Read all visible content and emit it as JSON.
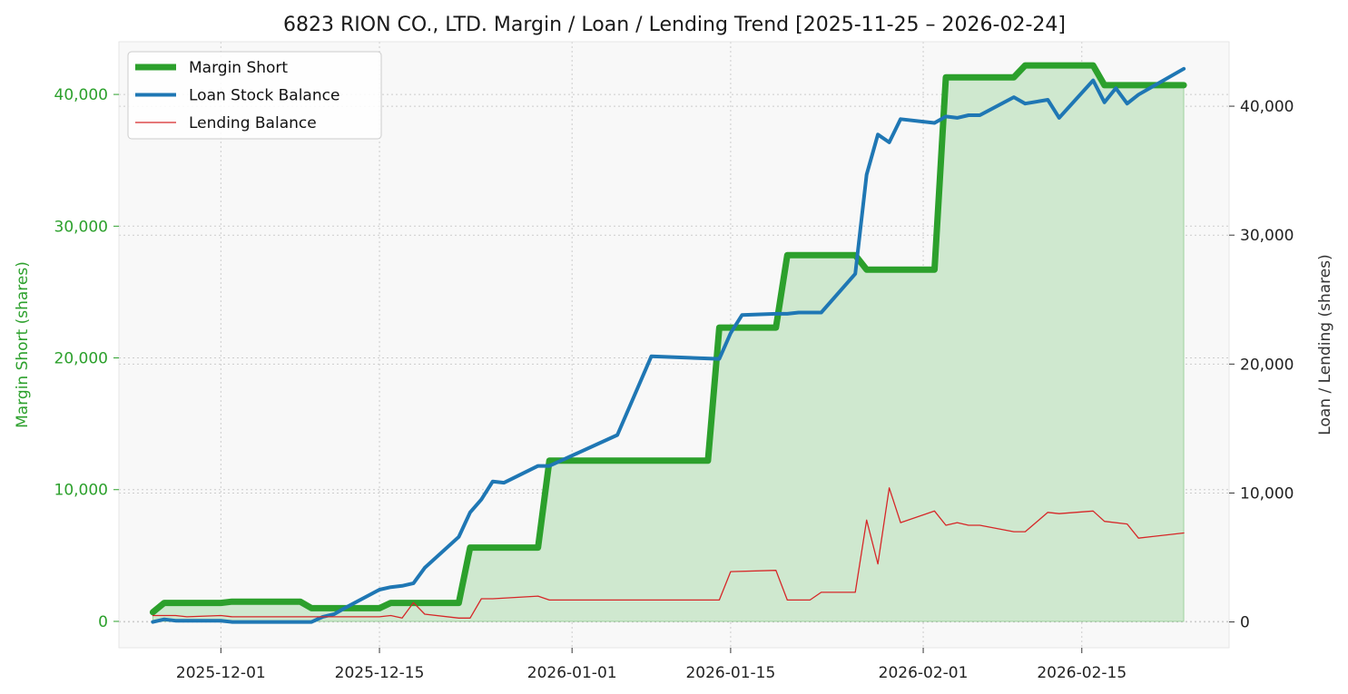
{
  "chart_data": {
    "type": "line",
    "title": "6823 RION CO., LTD. Margin / Loan / Lending Trend [2025-11-25 – 2026-02-24]",
    "ylabel_left": "Margin Short (shares)",
    "ylabel_right": "Loan / Lending (shares)",
    "xlim": [
      "2025-11-22",
      "2026-02-28"
    ],
    "ylim_left": [
      -2000,
      44000
    ],
    "ylim_right": [
      -2000,
      45000
    ],
    "x_ticks": [
      "2025-12-01",
      "2025-12-15",
      "2026-01-01",
      "2026-01-15",
      "2026-02-01",
      "2026-02-15"
    ],
    "y_ticks_left": [
      0,
      10000,
      20000,
      30000,
      40000
    ],
    "y_ticks_left_labels": [
      "0",
      "10,000",
      "20,000",
      "30,000",
      "40,000"
    ],
    "y_ticks_right": [
      0,
      10000,
      20000,
      30000,
      40000
    ],
    "y_ticks_right_labels": [
      "0",
      "10,000",
      "20,000",
      "30,000",
      "40,000"
    ],
    "grid": true,
    "legend_position": "upper-left",
    "colors": {
      "margin": "#2ca02c",
      "margin_fill": "#cfe8cf",
      "loan": "#1f77b4",
      "lending": "#d62728",
      "left_axis": "#2ca02c",
      "right_axis": "#333333",
      "plot_bg": "#f8f8f8",
      "grid": "#cccccc"
    },
    "series": [
      {
        "name": "Margin Short",
        "axis": "left",
        "style": "step",
        "points": [
          [
            "2025-11-25",
            700
          ],
          [
            "2025-11-26",
            1400
          ],
          [
            "2025-12-01",
            1400
          ],
          [
            "2025-12-02",
            1500
          ],
          [
            "2025-12-08",
            1500
          ],
          [
            "2025-12-09",
            1000
          ],
          [
            "2025-12-15",
            1000
          ],
          [
            "2025-12-16",
            1400
          ],
          [
            "2025-12-22",
            1400
          ],
          [
            "2025-12-23",
            5600
          ],
          [
            "2025-12-29",
            5600
          ],
          [
            "2025-12-30",
            12200
          ],
          [
            "2026-01-13",
            12200
          ],
          [
            "2026-01-14",
            22300
          ],
          [
            "2026-01-19",
            22300
          ],
          [
            "2026-01-20",
            27800
          ],
          [
            "2026-01-26",
            27800
          ],
          [
            "2026-01-27",
            26700
          ],
          [
            "2026-02-02",
            26700
          ],
          [
            "2026-02-03",
            41300
          ],
          [
            "2026-02-09",
            41300
          ],
          [
            "2026-02-10",
            42200
          ],
          [
            "2026-02-16",
            42200
          ],
          [
            "2026-02-17",
            40700
          ],
          [
            "2026-02-24",
            40700
          ]
        ]
      },
      {
        "name": "Loan Stock Balance",
        "axis": "right",
        "points": [
          [
            "2025-11-25",
            0
          ],
          [
            "2025-11-26",
            200
          ],
          [
            "2025-11-27",
            100
          ],
          [
            "2025-12-01",
            100
          ],
          [
            "2025-12-02",
            0
          ],
          [
            "2025-12-09",
            0
          ],
          [
            "2025-12-10",
            400
          ],
          [
            "2025-12-11",
            600
          ],
          [
            "2025-12-12",
            1100
          ],
          [
            "2025-12-15",
            2500
          ],
          [
            "2025-12-16",
            2700
          ],
          [
            "2025-12-17",
            2800
          ],
          [
            "2025-12-18",
            3000
          ],
          [
            "2025-12-19",
            4200
          ],
          [
            "2025-12-22",
            6600
          ],
          [
            "2025-12-23",
            8500
          ],
          [
            "2025-12-24",
            9500
          ],
          [
            "2025-12-25",
            10900
          ],
          [
            "2025-12-26",
            10800
          ],
          [
            "2025-12-29",
            12100
          ],
          [
            "2025-12-30",
            12100
          ],
          [
            "2026-01-05",
            14500
          ],
          [
            "2026-01-08",
            20600
          ],
          [
            "2026-01-14",
            20400
          ],
          [
            "2026-01-15",
            22400
          ],
          [
            "2026-01-16",
            23800
          ],
          [
            "2026-01-19",
            23900
          ],
          [
            "2026-01-20",
            23900
          ],
          [
            "2026-01-21",
            24000
          ],
          [
            "2026-01-23",
            24000
          ],
          [
            "2026-01-26",
            27000
          ],
          [
            "2026-01-27",
            34700
          ],
          [
            "2026-01-28",
            37800
          ],
          [
            "2026-01-29",
            37200
          ],
          [
            "2026-01-30",
            39000
          ],
          [
            "2026-02-02",
            38700
          ],
          [
            "2026-02-03",
            39200
          ],
          [
            "2026-02-04",
            39100
          ],
          [
            "2026-02-05",
            39300
          ],
          [
            "2026-02-06",
            39300
          ],
          [
            "2026-02-09",
            40700
          ],
          [
            "2026-02-10",
            40200
          ],
          [
            "2026-02-12",
            40500
          ],
          [
            "2026-02-13",
            39100
          ],
          [
            "2026-02-16",
            42000
          ],
          [
            "2026-02-17",
            40300
          ],
          [
            "2026-02-18",
            41400
          ],
          [
            "2026-02-19",
            40200
          ],
          [
            "2026-02-20",
            40900
          ],
          [
            "2026-02-24",
            42900
          ]
        ]
      },
      {
        "name": "Lending Balance",
        "axis": "right",
        "points": [
          [
            "2025-11-25",
            500
          ],
          [
            "2025-11-27",
            500
          ],
          [
            "2025-11-28",
            400
          ],
          [
            "2025-12-01",
            500
          ],
          [
            "2025-12-02",
            400
          ],
          [
            "2025-12-15",
            400
          ],
          [
            "2025-12-16",
            500
          ],
          [
            "2025-12-17",
            300
          ],
          [
            "2025-12-18",
            1500
          ],
          [
            "2025-12-19",
            600
          ],
          [
            "2025-12-22",
            300
          ],
          [
            "2025-12-23",
            300
          ],
          [
            "2025-12-24",
            1800
          ],
          [
            "2025-12-25",
            1800
          ],
          [
            "2025-12-29",
            2000
          ],
          [
            "2025-12-30",
            1700
          ],
          [
            "2026-01-14",
            1700
          ],
          [
            "2026-01-15",
            3900
          ],
          [
            "2026-01-19",
            4000
          ],
          [
            "2026-01-20",
            1700
          ],
          [
            "2026-01-22",
            1700
          ],
          [
            "2026-01-23",
            2300
          ],
          [
            "2026-01-26",
            2300
          ],
          [
            "2026-01-27",
            7900
          ],
          [
            "2026-01-28",
            4500
          ],
          [
            "2026-01-29",
            10400
          ],
          [
            "2026-01-30",
            7700
          ],
          [
            "2026-02-02",
            8600
          ],
          [
            "2026-02-03",
            7500
          ],
          [
            "2026-02-04",
            7700
          ],
          [
            "2026-02-05",
            7500
          ],
          [
            "2026-02-06",
            7500
          ],
          [
            "2026-02-09",
            7000
          ],
          [
            "2026-02-10",
            7000
          ],
          [
            "2026-02-12",
            8500
          ],
          [
            "2026-02-13",
            8400
          ],
          [
            "2026-02-16",
            8600
          ],
          [
            "2026-02-17",
            7800
          ],
          [
            "2026-02-19",
            7600
          ],
          [
            "2026-02-20",
            6500
          ],
          [
            "2026-02-24",
            6900
          ]
        ]
      }
    ]
  }
}
